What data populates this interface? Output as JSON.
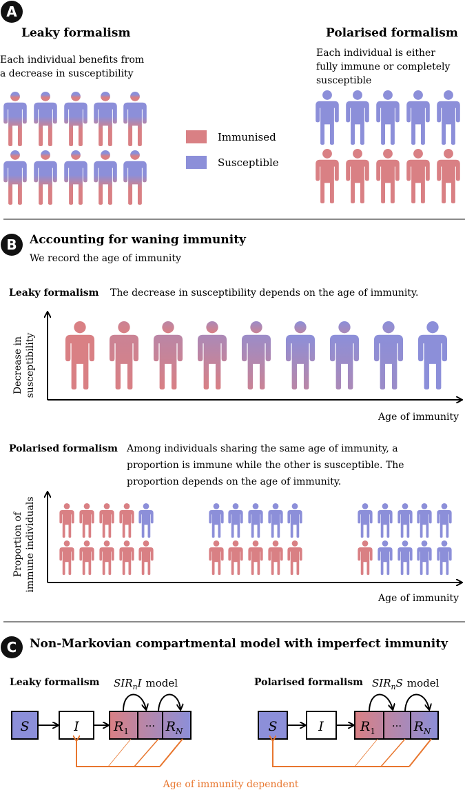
{
  "colors": {
    "immunised": "#d98084",
    "susceptible": "#8c8fd9",
    "arrow_orange": "#e8762e",
    "divider": "#8a8a8a",
    "badge": "#111111"
  },
  "panel_a": {
    "badge": "A",
    "leaky": {
      "title": "Leaky formalism",
      "desc_line1": "Each individual benefits from",
      "desc_line2": "a decrease in susceptibility"
    },
    "polarised": {
      "title": "Polarised formalism",
      "desc_line1": "Each individual is either",
      "desc_line2": "fully immune or completely",
      "desc_line3": "susceptible"
    },
    "legend": {
      "immunised": "Immunised",
      "susceptible": "Susceptible"
    }
  },
  "panel_b": {
    "badge": "B",
    "title": "Accounting for waning immunity",
    "subtitle": "We record the age of immunity",
    "leaky": {
      "label": "Leaky formalism",
      "desc": "The decrease in susceptibility depends on the age of immunity.",
      "ylabel_line1": "Decrease in",
      "ylabel_line2": "susceptibility",
      "xlabel": "Age of immunity",
      "gradient_steps": 9
    },
    "polarised": {
      "label": "Polarised formalism",
      "desc_line1": "Among individuals sharing the same age of immunity, a",
      "desc_line2": "proportion is immune while the other is susceptible. The",
      "desc_line3": "proportion depends on the age of immunity.",
      "ylabel_line1": "Proportion of",
      "ylabel_line2": "immune individuals",
      "xlabel": "Age of immunity",
      "groups": [
        {
          "immune": 9,
          "total": 10
        },
        {
          "immune": 5,
          "total": 10
        },
        {
          "immune": 1,
          "total": 10
        }
      ]
    }
  },
  "panel_c": {
    "badge": "C",
    "title": "Non-Markovian compartmental model with imperfect immunity",
    "leaky": {
      "label": "Leaky formalism",
      "model_prefix": "SIR",
      "model_sub": "n",
      "model_suffix": "I",
      "model_word": "model"
    },
    "polarised": {
      "label": "Polarised formalism",
      "model_prefix": "SIR",
      "model_sub": "n",
      "model_suffix": "S",
      "model_word": "model"
    },
    "compartments": {
      "s": "S",
      "i": "I",
      "r1": "R",
      "r1_sub": "1",
      "dots": "···",
      "rn": "R",
      "rn_sub": "N"
    },
    "caption": "Age of immunity dependent"
  }
}
